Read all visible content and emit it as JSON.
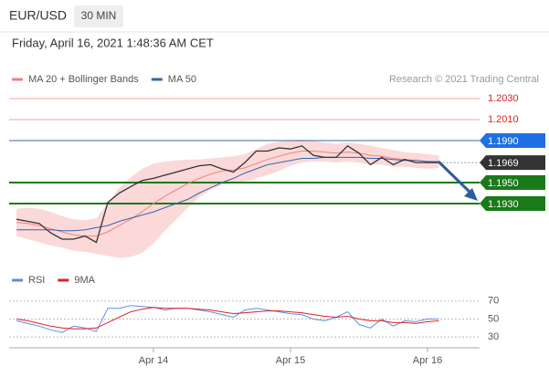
{
  "header": {
    "symbol": "EUR/USD",
    "timeframe": "30 MIN",
    "datetime": "Friday, April 16, 2021 1:48:36 AM CET",
    "copyright": "Research © 2021 Trading Central"
  },
  "chart_data": [
    {
      "type": "line",
      "ylim": [
        1.1876,
        1.2037
      ],
      "series": [
        {
          "name": "MA 20 + Bollinger Bands",
          "color": "#f08080",
          "band_color": "#f9c9c9",
          "values": [
            1.1912,
            1.1911,
            1.1909,
            1.1906,
            1.1903,
            1.19,
            1.1899,
            1.1899,
            1.1903,
            1.1909,
            1.1915,
            1.1922,
            1.193,
            1.1937,
            1.1943,
            1.1949,
            1.1954,
            1.1958,
            1.1961,
            1.1962,
            1.1964,
            1.1968,
            1.1972,
            1.1975,
            1.1978,
            1.198,
            1.198,
            1.1979,
            1.1978,
            1.1979,
            1.1978,
            1.1976,
            1.1975,
            1.1973,
            1.1972,
            1.1971,
            1.197,
            1.197
          ],
          "upper": [
            1.1925,
            1.1926,
            1.1925,
            1.1922,
            1.1918,
            1.1915,
            1.1914,
            1.1916,
            1.193,
            1.1945,
            1.1955,
            1.1963,
            1.1968,
            1.197,
            1.1971,
            1.1972,
            1.1972,
            1.1973,
            1.1974,
            1.1975,
            1.1977,
            1.1982,
            1.1987,
            1.1989,
            1.199,
            1.1991,
            1.199,
            1.1988,
            1.1987,
            1.1988,
            1.1987,
            1.1985,
            1.1983,
            1.1981,
            1.1979,
            1.1978,
            1.1977,
            1.1976
          ],
          "lower": [
            1.1899,
            1.1896,
            1.1893,
            1.189,
            1.1888,
            1.1885,
            1.1884,
            1.1882,
            1.188,
            1.1878,
            1.1879,
            1.1883,
            1.1892,
            1.1904,
            1.1915,
            1.1926,
            1.1936,
            1.1943,
            1.1948,
            1.1949,
            1.1951,
            1.1954,
            1.1957,
            1.1961,
            1.1966,
            1.1969,
            1.197,
            1.197,
            1.1969,
            1.197,
            1.1969,
            1.1967,
            1.1967,
            1.1965,
            1.1965,
            1.1964,
            1.1963,
            1.1964
          ]
        },
        {
          "name": "MA 50",
          "color": "#3a64a8",
          "values": [
            1.1905,
            1.1905,
            1.1905,
            1.1905,
            1.1904,
            1.1904,
            1.1905,
            1.1907,
            1.1909,
            1.1913,
            1.1916,
            1.1919,
            1.1922,
            1.1926,
            1.193,
            1.1934,
            1.194,
            1.1945,
            1.195,
            1.1954,
            1.1959,
            1.1963,
            1.1967,
            1.1969,
            1.1971,
            1.1973,
            1.1973,
            1.1974,
            1.1974,
            1.1974,
            1.1974,
            1.1973,
            1.1973,
            1.1972,
            1.1971,
            1.1971,
            1.197,
            1.197
          ]
        },
        {
          "color": "#333333",
          "values": [
            1.1915,
            1.1913,
            1.1911,
            1.1902,
            1.1896,
            1.1896,
            1.1899,
            1.1893,
            1.1931,
            1.194,
            1.1946,
            1.1952,
            1.1954,
            1.1957,
            1.196,
            1.1963,
            1.1966,
            1.1967,
            1.1963,
            1.196,
            1.1969,
            1.198,
            1.198,
            1.1983,
            1.1982,
            1.1985,
            1.1976,
            1.1974,
            1.1974,
            1.1985,
            1.1978,
            1.1967,
            1.1974,
            1.1967,
            1.1972,
            1.1969,
            1.1969,
            1.1969
          ]
        }
      ],
      "levels": [
        {
          "value": 1.203,
          "label": "1.2030",
          "color": "#f4a3a3",
          "text_color": "#e02020",
          "style": "text"
        },
        {
          "value": 1.201,
          "label": "1.2010",
          "color": "#f4a3a3",
          "text_color": "#e02020",
          "style": "text"
        },
        {
          "value": 1.199,
          "label": "1.1990",
          "color": "#3a64a8",
          "tag_color": "#1f6fe5",
          "style": "tag"
        },
        {
          "value": 1.1969,
          "color": "#999999",
          "tag_color": "#333333",
          "style": "tag"
        },
        {
          "value": 1.195,
          "label": "1.1950",
          "color": "#1a7a1a",
          "tag_color": "#1a7a1a",
          "style": "tag"
        },
        {
          "value": 1.193,
          "label": "1.1930",
          "color": "#1a7a1a",
          "tag_color": "#1a7a1a",
          "style": "tag"
        }
      ]
    },
    {
      "type": "line",
      "ylim": [
        21,
        82
      ],
      "yticks": [
        70,
        50,
        30
      ],
      "categories": [
        null,
        null,
        null,
        null,
        null,
        null,
        null,
        null,
        null,
        null,
        null,
        null,
        "Apr 14",
        null,
        null,
        null,
        null,
        null,
        null,
        null,
        null,
        null,
        null,
        null,
        "Apr 15",
        null,
        null,
        null,
        null,
        null,
        null,
        null,
        null,
        null,
        null,
        null,
        "Apr 16",
        null
      ],
      "series": [
        {
          "name": "RSI",
          "color": "#5b8ee0",
          "values": [
            48,
            45,
            42,
            38,
            35,
            42,
            40,
            36,
            62,
            62,
            65,
            64,
            63,
            60,
            62,
            62,
            60,
            58,
            55,
            52,
            60,
            62,
            60,
            58,
            56,
            55,
            50,
            48,
            52,
            58,
            44,
            40,
            50,
            42,
            48,
            47,
            50,
            50
          ]
        },
        {
          "name": "9MA",
          "color": "#e02020",
          "values": [
            50,
            48,
            45,
            42,
            40,
            39,
            39,
            40,
            46,
            52,
            58,
            61,
            63,
            62,
            62,
            62,
            61,
            60,
            58,
            56,
            57,
            58,
            59,
            59,
            58,
            57,
            55,
            53,
            52,
            53,
            50,
            48,
            48,
            46,
            46,
            45,
            47,
            48
          ]
        }
      ]
    }
  ]
}
